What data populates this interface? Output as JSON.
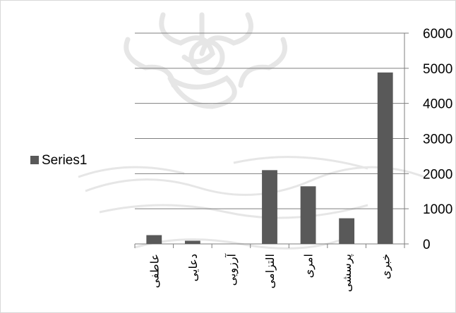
{
  "chart_data": {
    "type": "bar",
    "categories": [
      "عاطفی",
      "دعایی",
      "آرزویی",
      "التزامی",
      "امری",
      "پرسشی",
      "خبری"
    ],
    "series": [
      {
        "name": "Series1",
        "values": [
          250,
          90,
          0,
          2100,
          1640,
          730,
          4880
        ],
        "color": "#595959"
      }
    ],
    "yticks": [
      "0",
      "1000",
      "2000",
      "3000",
      "4000",
      "5000",
      "6000"
    ],
    "ylim": [
      0,
      6000
    ],
    "y_axis_position": "right",
    "grid": true,
    "legend_position": "left",
    "category_label_rotation": "vertical",
    "title": "",
    "xlabel": "",
    "ylabel": ""
  },
  "colors": {
    "bar": "#595959",
    "gridline": "#7f7f7f",
    "axis": "#7f7f7f",
    "watermark": "#e3e3e3"
  }
}
